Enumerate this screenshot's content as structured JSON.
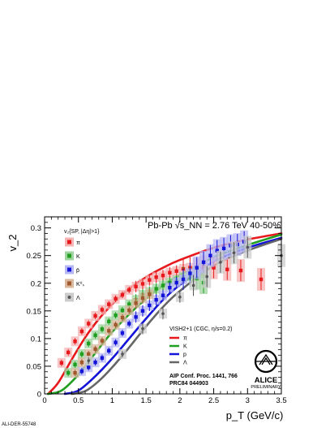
{
  "chart_data": {
    "type": "scatter",
    "title": "Pb-Pb √s_NN = 2.76 TeV 40-50%",
    "xlabel": "p_T (GeV/c)",
    "ylabel": "v_2",
    "xlim": [
      0,
      3.5
    ],
    "ylim": [
      0,
      0.32
    ],
    "x_ticks": [
      0,
      0.5,
      1,
      1.5,
      2,
      2.5,
      3,
      3.5
    ],
    "x_tick_labels": [
      "0",
      "0.5",
      "1",
      "1.5",
      "2",
      "2.5",
      "3",
      "3.5"
    ],
    "y_ticks": [
      0,
      0.05,
      0.1,
      0.15,
      0.2,
      0.25,
      0.3
    ],
    "y_tick_labels": [
      "0",
      "0.05",
      "0.1",
      "0.15",
      "0.2",
      "0.25",
      "0.3"
    ],
    "grid": false,
    "data_legend": {
      "header": "v₂{SP, |Δη|>1}",
      "entries": [
        "π",
        "K",
        "p̄",
        "K⁰ₛ",
        "Λ"
      ]
    },
    "model_legend": {
      "header": "VISH2+1 (CGC, η/s=0.2)",
      "entries": [
        "π",
        "K",
        "p",
        "Λ"
      ]
    },
    "reference": [
      "AIP Conf. Proc. 1441, 766",
      "PRC84 044903"
    ],
    "logo": "ALICE",
    "logo_sub": "PRELIMINARY",
    "watermark": "ALI-DER-55748",
    "series": [
      {
        "name": "π",
        "color": "#e8191c",
        "marker": "square",
        "x": [
          0.25,
          0.35,
          0.45,
          0.55,
          0.65,
          0.75,
          0.85,
          0.95,
          1.05,
          1.15,
          1.25,
          1.35,
          1.45,
          1.55,
          1.65,
          1.75,
          1.85,
          1.95,
          2.05,
          2.15,
          2.25,
          2.35,
          2.5,
          2.7,
          2.9,
          3.2
        ],
        "y": [
          0.056,
          0.075,
          0.095,
          0.113,
          0.127,
          0.141,
          0.152,
          0.162,
          0.172,
          0.179,
          0.188,
          0.194,
          0.199,
          0.206,
          0.211,
          0.214,
          0.219,
          0.222,
          0.226,
          0.228,
          0.225,
          0.23,
          0.228,
          0.225,
          0.223,
          0.207
        ]
      },
      {
        "name": "K",
        "color": "#1f9e1f",
        "marker": "square",
        "x": [
          0.35,
          0.45,
          0.55,
          0.65,
          0.75,
          0.85,
          0.95,
          1.05,
          1.15,
          1.25,
          1.35,
          1.45,
          1.55,
          1.65,
          1.75,
          1.85,
          1.95,
          2.05,
          2.15,
          2.25,
          2.35
        ],
        "y": [
          0.038,
          0.053,
          0.072,
          0.091,
          0.106,
          0.117,
          0.131,
          0.142,
          0.151,
          0.162,
          0.17,
          0.179,
          0.184,
          0.19,
          0.196,
          0.201,
          0.205,
          0.211,
          0.212,
          0.209,
          0.201
        ]
      },
      {
        "name": "p̄",
        "color": "#1414d8",
        "marker": "square",
        "x": [
          0.55,
          0.65,
          0.75,
          0.85,
          0.95,
          1.05,
          1.15,
          1.25,
          1.35,
          1.45,
          1.55,
          1.65,
          1.75,
          1.85,
          1.95,
          2.05,
          2.15,
          2.25,
          2.35,
          2.45,
          2.55,
          2.65,
          2.75,
          2.85,
          2.95
        ],
        "y": [
          0.041,
          0.048,
          0.057,
          0.065,
          0.078,
          0.093,
          0.11,
          0.127,
          0.139,
          0.15,
          0.16,
          0.17,
          0.178,
          0.192,
          0.201,
          0.207,
          0.218,
          0.228,
          0.238,
          0.25,
          0.259,
          0.263,
          0.268,
          0.27,
          0.275
        ]
      },
      {
        "name": "K⁰ₛ",
        "color": "#a0582d",
        "marker": "square",
        "x": [
          0.45,
          0.55,
          0.65,
          0.75,
          0.85,
          0.95,
          1.05,
          1.15,
          1.25,
          1.35,
          1.45,
          1.55
        ],
        "y": [
          0.038,
          0.057,
          0.072,
          0.081,
          0.096,
          0.114,
          0.125,
          0.138,
          0.151,
          0.164,
          0.173,
          0.18
        ]
      },
      {
        "name": "Λ",
        "color": "#555555",
        "marker": "circle",
        "x": [
          0.65,
          1.15,
          1.45,
          1.75,
          2.0,
          2.2,
          2.4,
          2.6,
          2.8,
          3.0,
          3.5
        ],
        "y": [
          0.06,
          0.072,
          0.118,
          0.145,
          0.175,
          0.196,
          0.212,
          0.238,
          0.255,
          0.265,
          0.25
        ]
      }
    ],
    "model_curves": [
      {
        "name": "π",
        "color": "#e8191c",
        "x": [
          0.05,
          0.2,
          0.4,
          0.6,
          0.8,
          1.0,
          1.25,
          1.5,
          1.75,
          2.0,
          2.5,
          3.0,
          3.5
        ],
        "y": [
          0.0,
          0.02,
          0.062,
          0.102,
          0.135,
          0.162,
          0.19,
          0.211,
          0.228,
          0.242,
          0.264,
          0.279,
          0.29
        ]
      },
      {
        "name": "K",
        "color": "#1f9e1f",
        "x": [
          0.05,
          0.25,
          0.5,
          0.75,
          1.0,
          1.25,
          1.5,
          1.75,
          2.0,
          2.5,
          3.0,
          3.5
        ],
        "y": [
          0.0,
          0.006,
          0.035,
          0.074,
          0.112,
          0.144,
          0.172,
          0.196,
          0.215,
          0.247,
          0.269,
          0.288
        ]
      },
      {
        "name": "p",
        "color": "#1414d8",
        "x": [
          0.3,
          0.5,
          0.75,
          1.0,
          1.25,
          1.5,
          1.75,
          2.0,
          2.5,
          3.0,
          3.5
        ],
        "y": [
          0.0,
          0.006,
          0.032,
          0.064,
          0.1,
          0.136,
          0.17,
          0.197,
          0.239,
          0.264,
          0.282
        ]
      },
      {
        "name": "Λ",
        "color": "#666666",
        "x": [
          0.4,
          0.6,
          0.8,
          1.0,
          1.25,
          1.5,
          1.75,
          2.0,
          2.5,
          3.0,
          3.5
        ],
        "y": [
          0.0,
          0.005,
          0.023,
          0.048,
          0.084,
          0.122,
          0.157,
          0.186,
          0.232,
          0.259,
          0.28
        ]
      }
    ]
  }
}
